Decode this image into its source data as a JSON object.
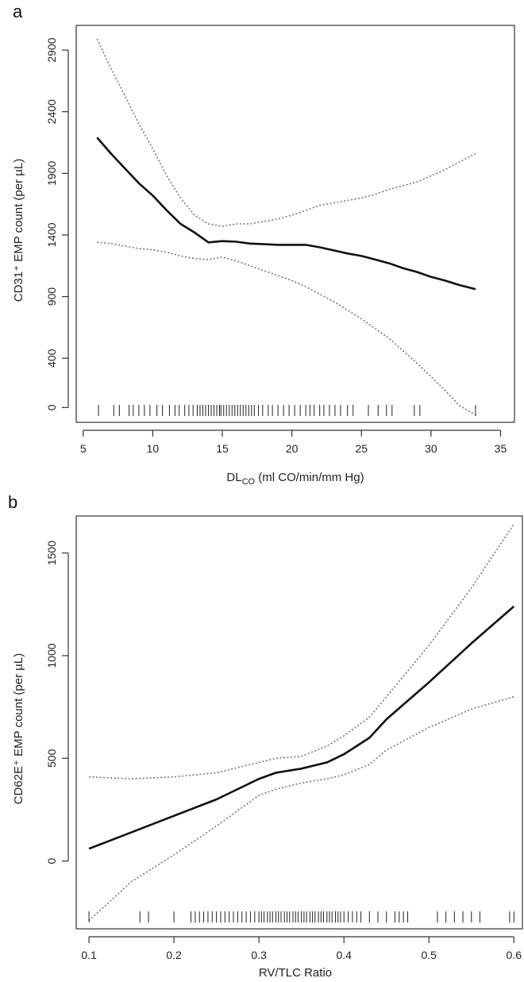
{
  "chart_data": [
    {
      "panel": "a",
      "type": "line",
      "xlabel": "DL",
      "xlabel_sub": "CO",
      "xlabel_rest": " (ml CO/min/mm Hg)",
      "ylabel": "CD31⁺ EMP count  (per µL)",
      "xlim": [
        4.5,
        36
      ],
      "ylim": [
        -120,
        3100
      ],
      "x_ticks": [
        5,
        10,
        15,
        20,
        25,
        30,
        35
      ],
      "y_ticks": [
        0,
        400,
        900,
        1400,
        1900,
        2400,
        2900
      ],
      "series": [
        {
          "role": "fit",
          "x": [
            6,
            7,
            8,
            9,
            10,
            11,
            12,
            13,
            14,
            15,
            16,
            17,
            18,
            19,
            20,
            21,
            22,
            23,
            24,
            25,
            26,
            27,
            28,
            29,
            30,
            31,
            32,
            33.2
          ],
          "y": [
            2190,
            2060,
            1940,
            1820,
            1720,
            1600,
            1490,
            1420,
            1340,
            1350,
            1345,
            1330,
            1325,
            1320,
            1320,
            1320,
            1300,
            1275,
            1250,
            1230,
            1200,
            1170,
            1130,
            1100,
            1060,
            1030,
            995,
            960
          ]
        },
        {
          "role": "upper",
          "x": [
            6,
            7,
            8,
            9,
            10,
            11,
            12,
            13,
            14,
            15,
            16,
            17,
            18,
            19,
            20,
            21,
            22,
            23,
            24,
            25,
            26,
            27,
            28,
            29,
            30,
            31,
            32,
            33.2
          ],
          "y": [
            2990,
            2750,
            2530,
            2300,
            2100,
            1880,
            1700,
            1560,
            1490,
            1470,
            1490,
            1490,
            1510,
            1530,
            1560,
            1600,
            1640,
            1660,
            1680,
            1700,
            1730,
            1770,
            1800,
            1830,
            1880,
            1930,
            1990,
            2060
          ]
        },
        {
          "role": "lower",
          "x": [
            6,
            7,
            8,
            9,
            10,
            11,
            12,
            13,
            14,
            15,
            16,
            17,
            18,
            19,
            20,
            21,
            22,
            23,
            24,
            25,
            26,
            27,
            28,
            29,
            30,
            31,
            32,
            33.2
          ],
          "y": [
            1340,
            1330,
            1310,
            1290,
            1280,
            1260,
            1230,
            1210,
            1200,
            1220,
            1190,
            1150,
            1110,
            1070,
            1030,
            980,
            920,
            860,
            790,
            720,
            640,
            560,
            460,
            360,
            250,
            140,
            20,
            -60
          ]
        }
      ],
      "rug": [
        6.1,
        7.2,
        7.6,
        8.3,
        8.6,
        9.0,
        9.4,
        9.8,
        10.3,
        10.7,
        11.2,
        11.6,
        11.9,
        12.3,
        12.6,
        12.9,
        13.2,
        13.4,
        13.6,
        13.8,
        14.0,
        14.2,
        14.4,
        14.6,
        14.8,
        14.9,
        15.1,
        15.3,
        15.5,
        15.7,
        15.9,
        16.1,
        16.3,
        16.5,
        16.7,
        16.9,
        17.1,
        17.3,
        17.6,
        17.9,
        18.3,
        18.6,
        19.0,
        19.4,
        19.8,
        20.2,
        20.6,
        21.0,
        21.3,
        21.6,
        22.0,
        22.3,
        22.7,
        23.1,
        23.5,
        24.0,
        24.4,
        25.5,
        26.2,
        26.8,
        27.2,
        28.8,
        29.2,
        33.2
      ]
    },
    {
      "panel": "b",
      "type": "line",
      "xlabel": "RV/TLC  Ratio",
      "ylabel": "CD62E⁺ EMP count  (per µL)",
      "xlim": [
        0.085,
        0.61
      ],
      "ylim": [
        -330,
        1680
      ],
      "x_ticks": [
        0.1,
        0.2,
        0.3,
        0.4,
        0.5,
        0.6
      ],
      "x_tick_labels": [
        "0.1",
        "0.2",
        "0.3",
        "0.4",
        "0.5",
        "0.6"
      ],
      "y_ticks": [
        0,
        500,
        1000,
        1500
      ],
      "series": [
        {
          "role": "fit",
          "x": [
            0.1,
            0.15,
            0.2,
            0.25,
            0.28,
            0.3,
            0.32,
            0.35,
            0.38,
            0.4,
            0.43,
            0.45,
            0.5,
            0.55,
            0.6
          ],
          "y": [
            60,
            140,
            220,
            300,
            360,
            400,
            430,
            450,
            480,
            520,
            600,
            690,
            870,
            1060,
            1240
          ]
        },
        {
          "role": "upper",
          "x": [
            0.1,
            0.15,
            0.2,
            0.25,
            0.28,
            0.3,
            0.32,
            0.35,
            0.38,
            0.4,
            0.43,
            0.45,
            0.5,
            0.55,
            0.6
          ],
          "y": [
            410,
            400,
            410,
            430,
            460,
            480,
            500,
            510,
            560,
            610,
            700,
            800,
            1050,
            1330,
            1640
          ]
        },
        {
          "role": "lower",
          "x": [
            0.1,
            0.15,
            0.2,
            0.25,
            0.28,
            0.3,
            0.32,
            0.35,
            0.38,
            0.4,
            0.43,
            0.45,
            0.5,
            0.55,
            0.6
          ],
          "y": [
            -290,
            -100,
            30,
            170,
            260,
            320,
            350,
            380,
            400,
            420,
            470,
            540,
            650,
            740,
            800
          ]
        }
      ],
      "rug": [
        0.1,
        0.16,
        0.17,
        0.2,
        0.22,
        0.225,
        0.23,
        0.235,
        0.24,
        0.245,
        0.25,
        0.255,
        0.26,
        0.265,
        0.27,
        0.275,
        0.28,
        0.285,
        0.29,
        0.295,
        0.3,
        0.303,
        0.306,
        0.31,
        0.313,
        0.316,
        0.32,
        0.323,
        0.326,
        0.33,
        0.333,
        0.336,
        0.34,
        0.343,
        0.346,
        0.35,
        0.353,
        0.356,
        0.36,
        0.363,
        0.366,
        0.37,
        0.373,
        0.376,
        0.38,
        0.383,
        0.386,
        0.39,
        0.393,
        0.396,
        0.4,
        0.405,
        0.41,
        0.415,
        0.42,
        0.43,
        0.44,
        0.45,
        0.46,
        0.465,
        0.47,
        0.475,
        0.51,
        0.52,
        0.53,
        0.54,
        0.55,
        0.56,
        0.595,
        0.6
      ]
    }
  ]
}
